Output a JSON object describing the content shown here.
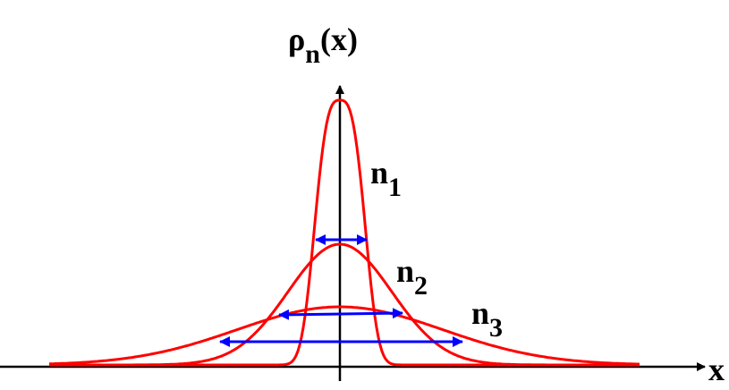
{
  "y_axis_label": {
    "symbol": "ρ",
    "subscript": "n",
    "argument": "(x)"
  },
  "x_axis_label": "x",
  "curves": [
    {
      "label": "n",
      "subscript": "1"
    },
    {
      "label": "n",
      "subscript": "2"
    },
    {
      "label": "n",
      "subscript": "3"
    }
  ]
}
